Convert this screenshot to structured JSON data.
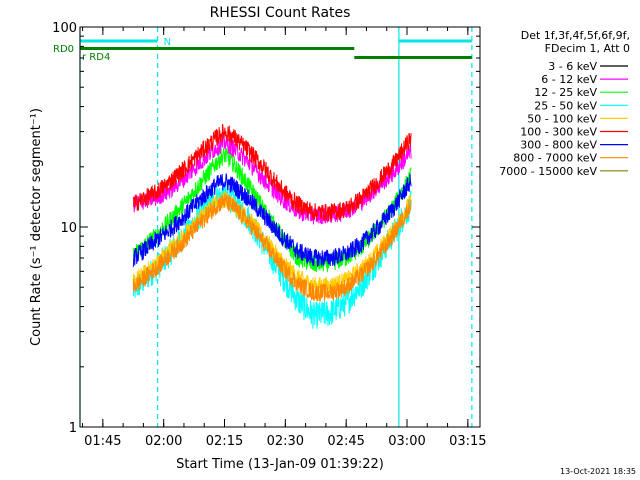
{
  "chart_data": {
    "type": "line",
    "title": "RHESSI Count Rates",
    "xlabel": "Start Time (13-Jan-09 01:39:22)",
    "ylabel": "Count Rate (s⁻¹ detector segment⁻¹)",
    "yscale": "log",
    "ylim": [
      1,
      100
    ],
    "xlim": [
      "01:39:22",
      "03:18:00"
    ],
    "x_ticks": [
      "01:45",
      "02:00",
      "02:15",
      "02:30",
      "02:45",
      "03:00",
      "03:15"
    ],
    "y_ticks": [
      "1",
      "10",
      "100"
    ],
    "grid": false,
    "legend_position": "right",
    "legend_header": [
      "Det 1f,3f,4f,5f,6f,9f,",
      "FDecim 1, Att 0"
    ],
    "date_stamp": "13-Oct-2021 18:35",
    "time_format": "HH:MM",
    "series": [
      {
        "name": "3 - 6 keV",
        "color": "#000000",
        "x": [],
        "values": []
      },
      {
        "name": "6 - 12 keV",
        "color": "#ff00ff",
        "x": [
          "01:52:30",
          "01:55",
          "01:58",
          "02:01",
          "02:05",
          "02:09",
          "02:13",
          "02:15",
          "02:17",
          "02:21",
          "02:25",
          "02:29",
          "02:33",
          "02:37",
          "02:41",
          "02:45",
          "02:49",
          "02:53",
          "02:57",
          "03:01"
        ],
        "values": [
          13,
          13.5,
          14,
          15,
          17.5,
          21,
          25,
          26.5,
          25,
          21,
          17,
          14,
          12,
          11.4,
          11.5,
          12,
          13.5,
          16,
          19,
          24
        ]
      },
      {
        "name": "12 - 25 keV",
        "color": "#00ff00",
        "x": [
          "01:52:30",
          "01:55",
          "01:58",
          "02:01",
          "02:05",
          "02:09",
          "02:13",
          "02:15",
          "02:17",
          "02:21",
          "02:25",
          "02:29",
          "02:33",
          "02:37",
          "02:41",
          "02:45",
          "02:49",
          "02:53",
          "02:57",
          "03:01"
        ],
        "values": [
          7.2,
          8,
          9,
          10.5,
          13,
          16.5,
          21,
          23,
          21,
          16,
          12,
          9,
          7,
          6.5,
          6.6,
          7,
          8,
          10,
          13,
          18
        ]
      },
      {
        "name": "25 - 50 keV",
        "color": "#00ffff",
        "x": [
          "01:52:30",
          "01:55",
          "01:58",
          "02:01",
          "02:05",
          "02:09",
          "02:13",
          "02:15",
          "02:17",
          "02:21",
          "02:25",
          "02:29",
          "02:33",
          "02:37",
          "02:41",
          "02:45",
          "02:49",
          "02:53",
          "02:57",
          "03:01"
        ],
        "values": [
          4.8,
          5.4,
          6.2,
          7.2,
          9,
          11.5,
          14,
          14.5,
          13.5,
          11,
          8,
          5.8,
          4.3,
          3.6,
          3.7,
          4.2,
          5.2,
          7,
          9.5,
          13
        ]
      },
      {
        "name": "50 - 100 keV",
        "color": "#ffcc00",
        "x": [
          "01:52:30",
          "01:55",
          "01:58",
          "02:01",
          "02:05",
          "02:09",
          "02:13",
          "02:15",
          "02:17",
          "02:21",
          "02:25",
          "02:29",
          "02:33",
          "02:37",
          "02:41",
          "02:45",
          "02:49",
          "02:53",
          "02:57",
          "03:01"
        ],
        "values": [
          5.3,
          5.8,
          6.5,
          7.5,
          9,
          11,
          13.3,
          13.8,
          13,
          11,
          8.6,
          6.8,
          5.6,
          5.1,
          5.1,
          5.4,
          6.2,
          7.6,
          9.8,
          13.5
        ]
      },
      {
        "name": "100 - 300 keV",
        "color": "#ff0000",
        "x": [
          "01:52:30",
          "01:55",
          "01:58",
          "02:01",
          "02:05",
          "02:09",
          "02:13",
          "02:15",
          "02:17",
          "02:21",
          "02:25",
          "02:29",
          "02:33",
          "02:37",
          "02:41",
          "02:45",
          "02:49",
          "02:53",
          "02:57",
          "03:01"
        ],
        "values": [
          13,
          13.8,
          14.8,
          16.5,
          19.5,
          23.5,
          28,
          30,
          28.5,
          24,
          19.5,
          15.5,
          13,
          11.9,
          11.8,
          12.3,
          14,
          17,
          21,
          28
        ]
      },
      {
        "name": "300 - 800 keV",
        "color": "#0000ff",
        "x": [
          "01:52:30",
          "01:55",
          "01:58",
          "02:01",
          "02:05",
          "02:09",
          "02:13",
          "02:15",
          "02:17",
          "02:21",
          "02:25",
          "02:29",
          "02:33",
          "02:37",
          "02:41",
          "02:45",
          "02:49",
          "02:53",
          "02:57",
          "03:01"
        ],
        "values": [
          7,
          7.6,
          8.5,
          9.5,
          11.3,
          13.7,
          16.3,
          17,
          16.2,
          13.8,
          11.2,
          9,
          7.6,
          7,
          7,
          7.3,
          8.3,
          10,
          12.7,
          17
        ]
      },
      {
        "name": "800 - 7000 keV",
        "color": "#ff8800",
        "x": [
          "01:52:30",
          "01:55",
          "01:58",
          "02:01",
          "02:05",
          "02:09",
          "02:13",
          "02:15",
          "02:17",
          "02:21",
          "02:25",
          "02:29",
          "02:33",
          "02:37",
          "02:41",
          "02:45",
          "02:49",
          "02:53",
          "02:57",
          "03:01"
        ],
        "values": [
          5,
          5.5,
          6.2,
          7.1,
          8.5,
          10.5,
          12.8,
          13.5,
          12.7,
          10.5,
          8.2,
          6.4,
          5.2,
          4.7,
          4.7,
          5,
          5.8,
          7.2,
          9.4,
          13
        ]
      },
      {
        "name": "7000 - 15000 keV",
        "color": "#808000",
        "x": [],
        "values": []
      }
    ],
    "annotations": {
      "rd0": {
        "label": "RD0",
        "color": "#008000",
        "segments": [
          [
            "01:39:22",
            "02:47"
          ]
        ]
      },
      "rd4": {
        "label": "RD4",
        "color": "#008000",
        "segments": [
          [
            "02:47",
            "03:16"
          ]
        ]
      },
      "n_band": {
        "label": "N",
        "color": "#00e5e5",
        "segments": [
          [
            "01:39:22",
            "01:58:30"
          ],
          [
            "02:58",
            "03:16"
          ]
        ]
      },
      "solid_lines": {
        "color": "#00e5e5",
        "times": [
          "01:39:22",
          "02:58"
        ]
      },
      "dashed_lines": {
        "color": "#00e5e5",
        "times": [
          "01:58:30",
          "03:16"
        ]
      }
    }
  }
}
